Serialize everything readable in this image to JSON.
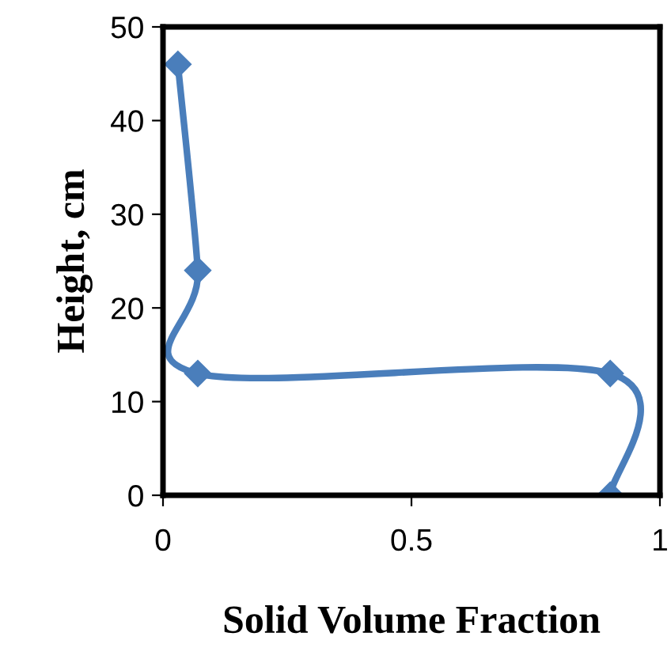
{
  "chart_data": {
    "type": "line",
    "xlabel": "Solid Volume Fraction",
    "ylabel": "Height, cm",
    "x": [
      0.03,
      0.07,
      0.07,
      0.9,
      0.9
    ],
    "series": [
      {
        "color": "#4a7ebb",
        "values": [
          46,
          24,
          13,
          13,
          0
        ]
      }
    ],
    "xlim": [
      0,
      1
    ],
    "xticks": [
      0,
      0.5,
      1
    ],
    "ylim": [
      0,
      50
    ],
    "yticks": [
      0,
      10,
      20,
      30,
      40,
      50
    ],
    "marker": "diamond",
    "line_style": "solid",
    "grid": false
  }
}
